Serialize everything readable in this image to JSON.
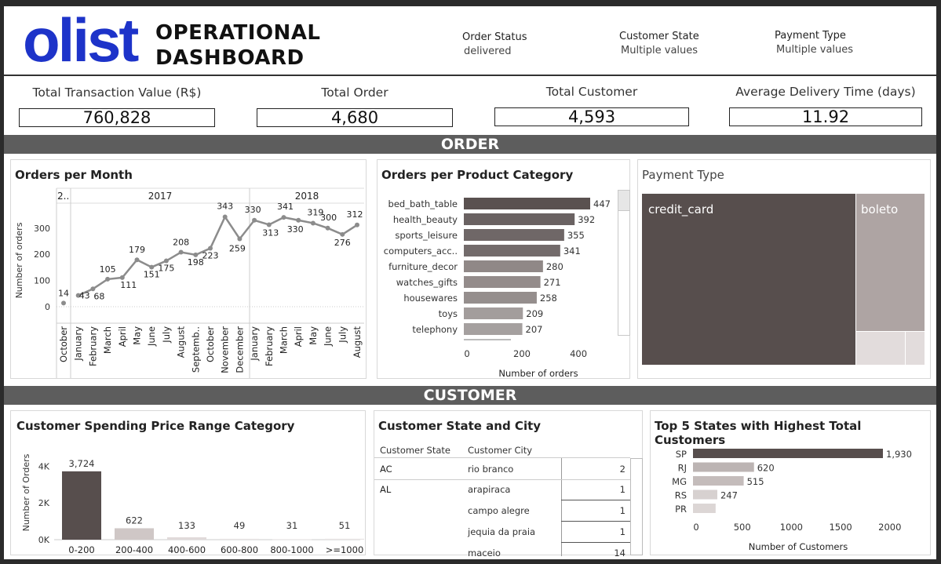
{
  "header": {
    "logo": "olist",
    "title_line1": "OPERATIONAL",
    "title_line2": "DASHBOARD",
    "filters": [
      {
        "label": "Order Status",
        "value": "delivered"
      },
      {
        "label": "Customer State",
        "value": "Multiple values"
      },
      {
        "label": "Payment Type",
        "value": "Multiple values"
      }
    ]
  },
  "kpis": [
    {
      "label": "Total Transaction Value (R$)",
      "value": "760,828"
    },
    {
      "label": "Total Order",
      "value": "4,680"
    },
    {
      "label": "Total Customer",
      "value": "4,593"
    },
    {
      "label": "Average Delivery Time (days)",
      "value": "11.92"
    }
  ],
  "sections": {
    "order": "ORDER",
    "customer": "CUSTOMER"
  },
  "orders_per_month": {
    "title": "Orders per Month",
    "ylabel": "Number of orders",
    "years": [
      "2..",
      "2017",
      "2018"
    ],
    "yticks": [
      "0",
      "100",
      "200",
      "300"
    ],
    "months": [
      "October",
      "January",
      "February",
      "March",
      "April",
      "May",
      "June",
      "July",
      "August",
      "Septemb..",
      "October",
      "November",
      "December",
      "January",
      "February",
      "March",
      "April",
      "May",
      "June",
      "July",
      "August"
    ],
    "values": [
      14,
      43,
      68,
      105,
      111,
      179,
      151,
      175,
      208,
      198,
      223,
      343,
      259,
      330,
      313,
      341,
      330,
      319,
      300,
      276,
      312
    ]
  },
  "product_category": {
    "title": "Orders per Product Category",
    "xlabel": "Number of orders",
    "xticks": [
      "0",
      "200",
      "400"
    ],
    "categories": [
      "bed_bath_table",
      "health_beauty",
      "sports_leisure",
      "computers_acc..",
      "furniture_decor",
      "watches_gifts",
      "housewares",
      "toys",
      "telephony"
    ],
    "values": [
      447,
      392,
      355,
      341,
      280,
      271,
      258,
      209,
      207
    ],
    "colors": [
      "#5a5150",
      "#6a6262",
      "#6f6767",
      "#736b6b",
      "#908887",
      "#948c8b",
      "#958e8d",
      "#a39d9c",
      "#a5a09f"
    ]
  },
  "payment_type": {
    "title": "Payment Type",
    "labels": [
      "credit_card",
      "boleto"
    ],
    "colors": [
      "#574e4d",
      "#aea4a3",
      "#e2dcdc"
    ]
  },
  "spending": {
    "title": "Customer Spending Price Range Category",
    "ylabel": "Number of Orders",
    "yticks": [
      "0K",
      "2K",
      "4K"
    ],
    "categories": [
      "0-200",
      "200-400",
      "400-600",
      "600-800",
      "800-1000",
      ">=1000"
    ],
    "values": [
      3724,
      622,
      133,
      49,
      31,
      51
    ],
    "labels": [
      "3,724",
      "622",
      "133",
      "49",
      "31",
      "51"
    ],
    "colors": [
      "#574e4d",
      "#cfc7c6",
      "#e0dada",
      "#e8e4e4",
      "#ebe7e7",
      "#e8e4e4"
    ]
  },
  "state_city": {
    "title": "Customer State and City",
    "col_state": "Customer State",
    "col_city": "Customer City",
    "rows": [
      {
        "state": "AC",
        "city": "rio branco",
        "count": "2"
      },
      {
        "state": "AL",
        "city": "arapiraca",
        "count": "1"
      },
      {
        "state": "",
        "city": "campo alegre",
        "count": "1"
      },
      {
        "state": "",
        "city": "jequia da praia",
        "count": "1"
      },
      {
        "state": "",
        "city": "maceio",
        "count": "14"
      }
    ]
  },
  "top_states": {
    "title": "Top 5 States with Highest Total Customers",
    "xlabel": "Number of Customers",
    "xticks": [
      "0",
      "500",
      "1000",
      "1500",
      "2000"
    ],
    "states": [
      "SP",
      "RJ",
      "MG",
      "RS",
      "PR"
    ],
    "values": [
      1930,
      620,
      515,
      247,
      230
    ],
    "labels": [
      "1,930",
      "620",
      "515",
      "247",
      ""
    ],
    "colors": [
      "#574e4d",
      "#bcb4b3",
      "#c4bcbb",
      "#d7d1d0",
      "#dcd6d5"
    ]
  }
}
